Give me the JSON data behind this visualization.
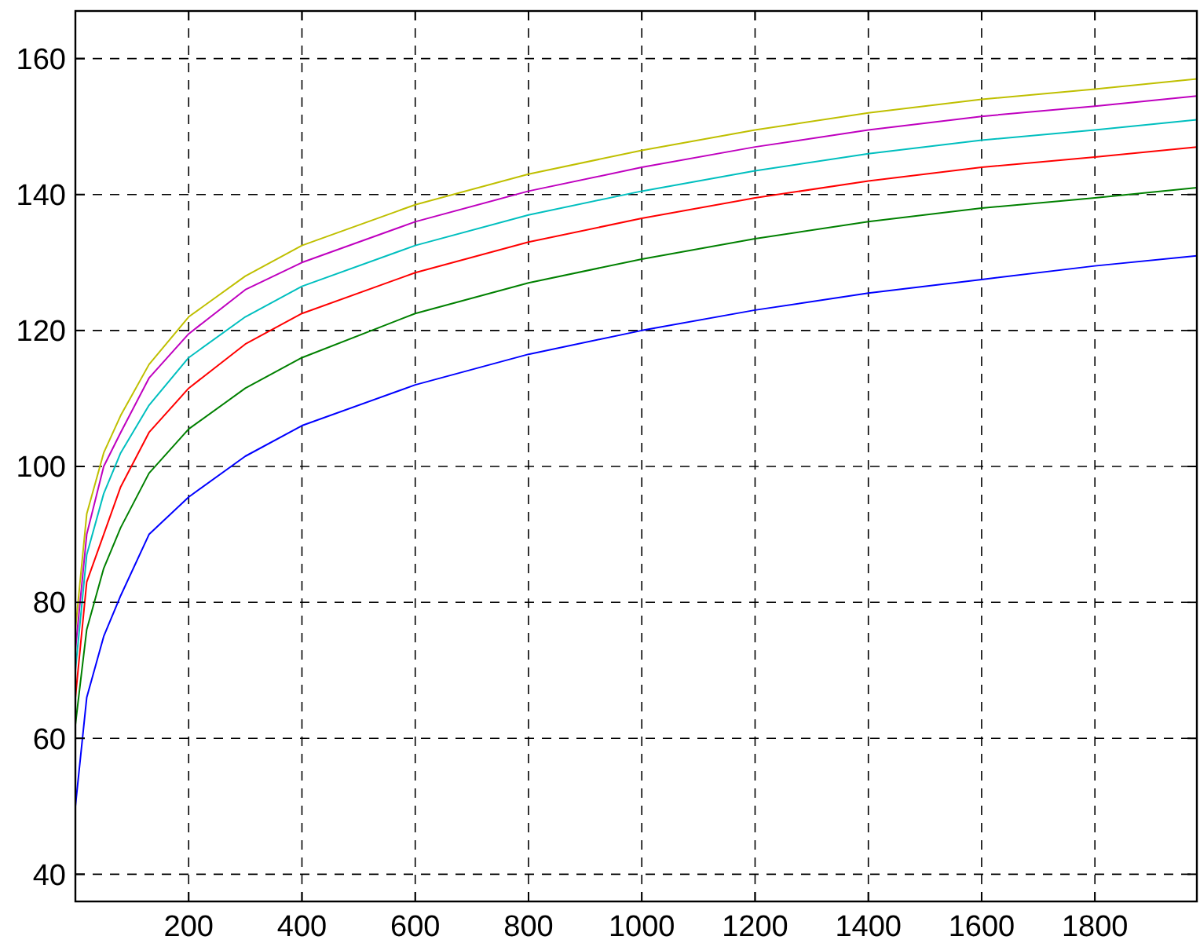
{
  "chart_data": {
    "type": "line",
    "xlim": [
      0,
      1980
    ],
    "ylim": [
      36,
      167
    ],
    "xticks": [
      200,
      400,
      600,
      800,
      1000,
      1200,
      1400,
      1600,
      1800
    ],
    "yticks": [
      40,
      60,
      80,
      100,
      120,
      140,
      160
    ],
    "grid": true,
    "line_style": "solid",
    "x": [
      0,
      20,
      50,
      80,
      130,
      200,
      300,
      400,
      600,
      800,
      1000,
      1200,
      1400,
      1600,
      1800,
      1980
    ],
    "series": [
      {
        "color": "#0000ff",
        "values": [
          50,
          66,
          75,
          81,
          90,
          95.5,
          101.5,
          106,
          112,
          116.5,
          120,
          123,
          125.5,
          127.5,
          129.5,
          131
        ]
      },
      {
        "color": "#008000",
        "values": [
          62,
          76,
          85,
          91,
          99,
          105.5,
          111.5,
          116,
          122.5,
          127,
          130.5,
          133.5,
          136,
          138,
          139.5,
          141
        ]
      },
      {
        "color": "#ff0000",
        "values": [
          66,
          83,
          90,
          97,
          105,
          111.5,
          118,
          122.5,
          128.5,
          133,
          136.5,
          139.5,
          142,
          144,
          145.5,
          147
        ]
      },
      {
        "color": "#00bfbf",
        "values": [
          70,
          87,
          96,
          102,
          109,
          116,
          122,
          126.5,
          132.5,
          137,
          140.5,
          143.5,
          146,
          148,
          149.5,
          151
        ]
      },
      {
        "color": "#bf00bf",
        "values": [
          73,
          90,
          100,
          105,
          113,
          119.5,
          126,
          130,
          136,
          140.5,
          144,
          147,
          149.5,
          151.5,
          153,
          154.5
        ]
      },
      {
        "color": "#bfbf00",
        "values": [
          76,
          93,
          102,
          107.5,
          115,
          122,
          128,
          132.5,
          138.5,
          143,
          146.5,
          149.5,
          152,
          154,
          155.5,
          157
        ]
      }
    ]
  }
}
